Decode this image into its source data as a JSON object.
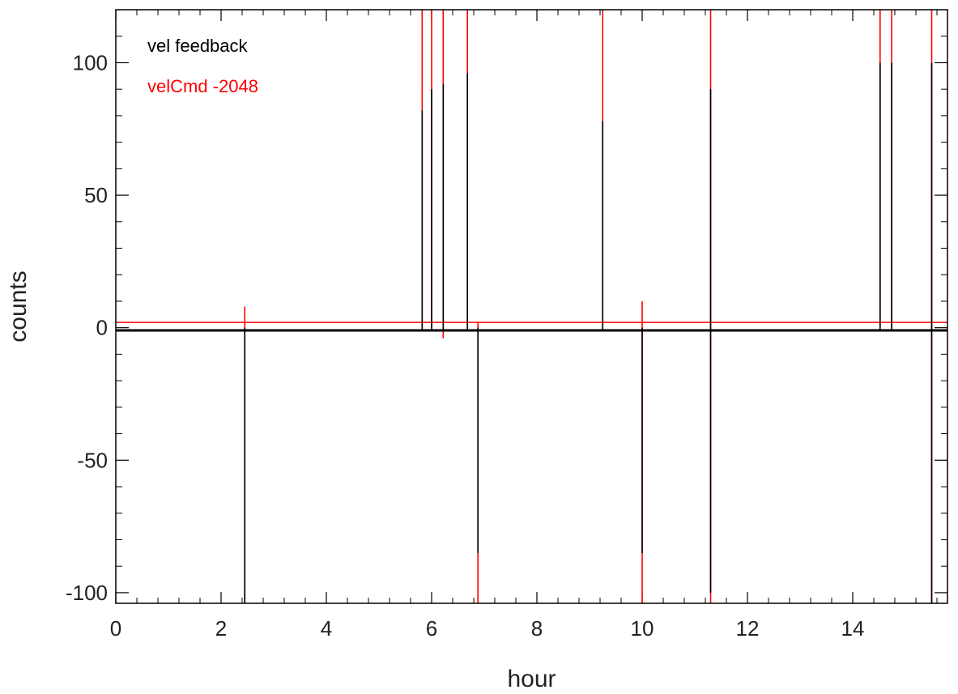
{
  "chart_data": {
    "type": "line",
    "xlabel": "hour",
    "ylabel": "counts",
    "xlim": [
      0,
      15.8
    ],
    "ylim": [
      -104,
      120
    ],
    "x_ticks": [
      0,
      2,
      4,
      6,
      8,
      10,
      12,
      14
    ],
    "x_tick_labels": [
      "0",
      "2",
      "4",
      "6",
      "8",
      "10",
      "12",
      "14"
    ],
    "x_minor_step": 0.4,
    "y_ticks": [
      -100,
      -50,
      0,
      50,
      100
    ],
    "y_tick_labels": [
      "-100",
      "-50",
      "0",
      "50",
      "100"
    ],
    "y_minor_step": 10,
    "legend_position": "top-left",
    "series": [
      {
        "name": "vel feedback",
        "color": "#000000",
        "baseline": -1,
        "spikes": [
          {
            "x": 2.45,
            "min": -104,
            "max": 0
          },
          {
            "x": 5.82,
            "min": -1,
            "max": 82
          },
          {
            "x": 6.0,
            "min": -1,
            "max": 90
          },
          {
            "x": 6.22,
            "min": -1,
            "max": 92
          },
          {
            "x": 6.68,
            "min": -1,
            "max": 96
          },
          {
            "x": 6.88,
            "min": -85,
            "max": 0
          },
          {
            "x": 9.25,
            "min": -1,
            "max": 78
          },
          {
            "x": 10.0,
            "min": -85,
            "max": 0
          },
          {
            "x": 11.3,
            "min": -100,
            "max": 90
          },
          {
            "x": 14.52,
            "min": -1,
            "max": 100
          },
          {
            "x": 14.74,
            "min": -1,
            "max": 100
          },
          {
            "x": 15.5,
            "min": -104,
            "max": 100
          }
        ]
      },
      {
        "name": "velCmd -2048",
        "color": "#ff0000",
        "baseline": 2,
        "spikes": [
          {
            "x": 2.45,
            "min": -104,
            "max": 8
          },
          {
            "x": 5.82,
            "min": 0,
            "max": 120
          },
          {
            "x": 6.0,
            "min": 0,
            "max": 120
          },
          {
            "x": 6.22,
            "min": -4,
            "max": 120
          },
          {
            "x": 6.68,
            "min": 0,
            "max": 120
          },
          {
            "x": 6.88,
            "min": -104,
            "max": 2
          },
          {
            "x": 9.25,
            "min": 0,
            "max": 120
          },
          {
            "x": 10.0,
            "min": -104,
            "max": 10
          },
          {
            "x": 11.3,
            "min": -104,
            "max": 120
          },
          {
            "x": 14.52,
            "min": 0,
            "max": 120
          },
          {
            "x": 14.74,
            "min": 0,
            "max": 120
          },
          {
            "x": 15.5,
            "min": -104,
            "max": 120
          }
        ]
      }
    ]
  }
}
